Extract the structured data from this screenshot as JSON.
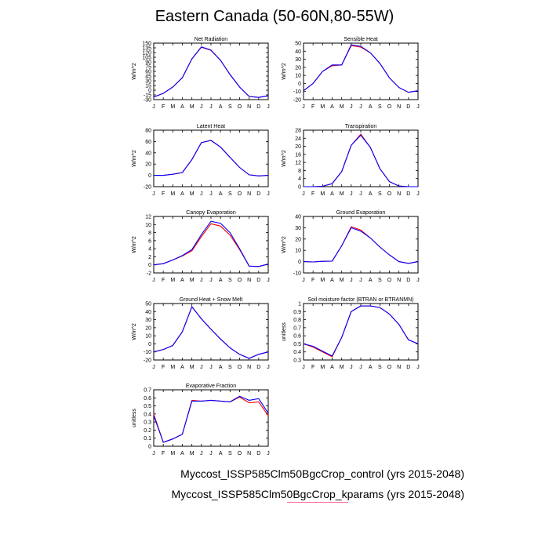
{
  "title": "Eastern Canada (50-60N,80-55W)",
  "legend": [
    {
      "label": "Myccost_ISSP585Clm50BgcCrop_control (yrs 2015-2048)",
      "color": "#0000ff"
    },
    {
      "label": "Myccost_ISSP585Clm50BgcCrop_kparams (yrs 2015-2048)",
      "color": "#ff0000"
    }
  ],
  "colors": {
    "control": "#0000ff",
    "kparams": "#ff0000"
  },
  "chart_data": [
    {
      "type": "line",
      "title": "Net Radiation",
      "ylabel": "W/m^2",
      "x": [
        "J",
        "F",
        "M",
        "A",
        "M",
        "J",
        "J",
        "A",
        "S",
        "O",
        "N",
        "D",
        "J"
      ],
      "yticks": [
        -30,
        -15,
        0,
        15,
        30,
        45,
        60,
        75,
        90,
        105,
        120,
        135,
        150
      ],
      "ylim": [
        -30,
        150
      ],
      "series": [
        {
          "values": [
            -22,
            -10,
            10,
            40,
            100,
            138,
            128,
            95,
            50,
            10,
            -20,
            -23,
            -18
          ]
        },
        {
          "values": [
            -22,
            -10,
            10,
            40,
            100,
            137,
            127,
            95,
            50,
            10,
            -20,
            -23,
            -18
          ]
        }
      ]
    },
    {
      "type": "line",
      "title": "Sensible Heat",
      "ylabel": "W/m^2",
      "x": [
        "J",
        "F",
        "M",
        "A",
        "M",
        "J",
        "J",
        "A",
        "S",
        "O",
        "N",
        "D",
        "J"
      ],
      "yticks": [
        -20,
        -10,
        0,
        10,
        20,
        30,
        40,
        50
      ],
      "ylim": [
        -20,
        50
      ],
      "series": [
        {
          "values": [
            -9,
            0,
            15,
            23,
            23,
            48,
            46,
            38,
            25,
            7,
            -5,
            -11,
            -9
          ]
        },
        {
          "values": [
            -9,
            0,
            15,
            22,
            23,
            47,
            45,
            38,
            25,
            7,
            -5,
            -11,
            -9
          ]
        }
      ]
    },
    {
      "type": "line",
      "title": "Latent Heat",
      "ylabel": "W/m^2",
      "x": [
        "J",
        "F",
        "M",
        "A",
        "M",
        "J",
        "J",
        "A",
        "S",
        "O",
        "N",
        "D",
        "J"
      ],
      "yticks": [
        -20,
        0,
        20,
        40,
        60,
        80
      ],
      "ylim": [
        -20,
        80
      ],
      "series": [
        {
          "values": [
            0,
            0,
            2,
            5,
            28,
            58,
            62,
            50,
            32,
            14,
            1,
            -1,
            0
          ]
        },
        {
          "values": [
            0,
            0,
            2,
            5,
            28,
            58,
            62,
            50,
            32,
            14,
            1,
            -1,
            0
          ]
        }
      ]
    },
    {
      "type": "line",
      "title": "Transpiration",
      "ylabel": "W/m^2",
      "x": [
        "J",
        "F",
        "M",
        "A",
        "M",
        "J",
        "J",
        "A",
        "S",
        "O",
        "N",
        "D",
        "J"
      ],
      "yticks": [
        0,
        4,
        8,
        12,
        16,
        20,
        24,
        28
      ],
      "ylim": [
        0,
        28
      ],
      "series": [
        {
          "values": [
            0,
            0,
            0.2,
            1.5,
            7.5,
            20.5,
            25.5,
            19.5,
            9,
            2.5,
            0.3,
            0,
            0
          ]
        },
        {
          "values": [
            0,
            0,
            0.2,
            1.5,
            7.5,
            20.5,
            26,
            19.5,
            9,
            2.5,
            0.3,
            0,
            0
          ]
        }
      ]
    },
    {
      "type": "line",
      "title": "Canopy Evaporation",
      "ylabel": "W/m^2",
      "x": [
        "J",
        "F",
        "M",
        "A",
        "M",
        "J",
        "J",
        "A",
        "S",
        "O",
        "N",
        "D",
        "J"
      ],
      "yticks": [
        -2,
        0,
        2,
        4,
        6,
        8,
        10,
        12
      ],
      "ylim": [
        -2,
        12
      ],
      "series": [
        {
          "values": [
            0,
            0.3,
            1.2,
            2.3,
            3.8,
            7.5,
            10.8,
            10.3,
            8,
            4,
            -0.3,
            -0.4,
            0.2
          ]
        },
        {
          "values": [
            0,
            0.3,
            1.2,
            2.2,
            3.5,
            7,
            10.2,
            9.6,
            7.4,
            3.8,
            -0.3,
            -0.4,
            0.2
          ]
        }
      ]
    },
    {
      "type": "line",
      "title": "Ground Evaporation",
      "ylabel": "W/m^2",
      "x": [
        "J",
        "F",
        "M",
        "A",
        "M",
        "J",
        "J",
        "A",
        "S",
        "O",
        "N",
        "D",
        "J"
      ],
      "yticks": [
        -10,
        0,
        10,
        20,
        30,
        40
      ],
      "ylim": [
        -10,
        40
      ],
      "series": [
        {
          "values": [
            0,
            -0.3,
            0.3,
            0.5,
            14,
            30,
            27,
            21,
            13,
            6,
            0,
            -1.5,
            0
          ]
        },
        {
          "values": [
            0,
            -0.3,
            0.3,
            0.5,
            14,
            31,
            28,
            21,
            13,
            6,
            0,
            -1.5,
            0
          ]
        }
      ]
    },
    {
      "type": "line",
      "title": "Ground Heat + Snow Melt",
      "ylabel": "W/m^2",
      "x": [
        "J",
        "F",
        "M",
        "A",
        "M",
        "J",
        "J",
        "A",
        "S",
        "O",
        "N",
        "D",
        "J"
      ],
      "yticks": [
        -20,
        -10,
        0,
        10,
        20,
        30,
        40,
        50
      ],
      "ylim": [
        -20,
        50
      ],
      "series": [
        {
          "values": [
            -10,
            -7,
            -2,
            15,
            46,
            31,
            18,
            6,
            -5,
            -13,
            -18,
            -13,
            -10
          ]
        },
        {
          "values": [
            -10,
            -7,
            -2,
            15,
            46,
            31,
            18,
            6,
            -5,
            -13,
            -18,
            -13,
            -10
          ]
        }
      ]
    },
    {
      "type": "line",
      "title": "Soil moisture factor (BTRAN or BTRANMN)",
      "ylabel": "unitless",
      "x": [
        "J",
        "F",
        "M",
        "A",
        "M",
        "J",
        "J",
        "A",
        "S",
        "O",
        "N",
        "D",
        "J"
      ],
      "yticks": [
        0.3,
        0.4,
        0.5,
        0.6,
        0.7,
        0.8,
        0.9,
        1.0
      ],
      "ylim": [
        0.3,
        1.0
      ],
      "series": [
        {
          "values": [
            0.5,
            0.47,
            0.41,
            0.35,
            0.58,
            0.9,
            0.97,
            0.97,
            0.95,
            0.87,
            0.74,
            0.55,
            0.5
          ]
        },
        {
          "values": [
            0.5,
            0.46,
            0.4,
            0.34,
            0.58,
            0.9,
            0.97,
            0.97,
            0.95,
            0.87,
            0.74,
            0.55,
            0.5
          ]
        }
      ]
    },
    {
      "type": "line",
      "title": "Evaporative Fraction",
      "ylabel": "unitless",
      "x": [
        "J",
        "F",
        "M",
        "A",
        "M",
        "J",
        "J",
        "A",
        "S",
        "O",
        "N",
        "D",
        "J"
      ],
      "yticks": [
        0.0,
        0.1,
        0.2,
        0.3,
        0.4,
        0.5,
        0.6,
        0.7
      ],
      "ylim": [
        0.0,
        0.7
      ],
      "series": [
        {
          "values": [
            0.38,
            0.05,
            0.09,
            0.15,
            0.56,
            0.56,
            0.57,
            0.56,
            0.55,
            0.62,
            0.57,
            0.59,
            0.41
          ]
        },
        {
          "values": [
            0.4,
            0.05,
            0.09,
            0.15,
            0.57,
            0.56,
            0.57,
            0.56,
            0.55,
            0.61,
            0.54,
            0.55,
            0.38
          ]
        }
      ]
    }
  ]
}
